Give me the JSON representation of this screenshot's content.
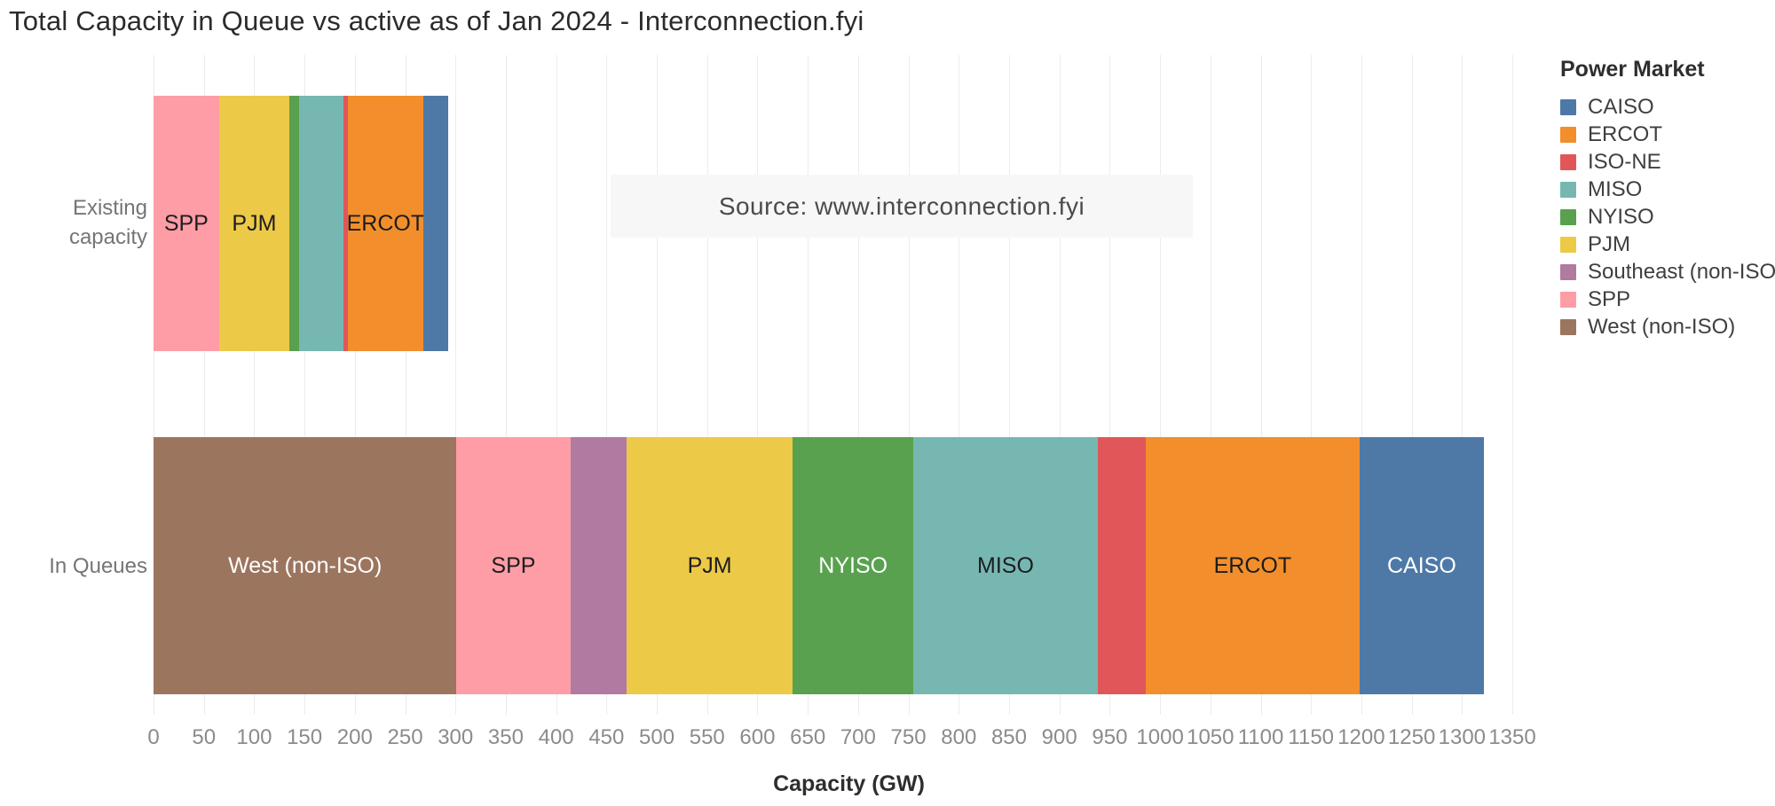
{
  "title": "Total Capacity in Queue vs active as of Jan 2024 - Interconnection.fyi",
  "source_note": "Source: www.interconnection.fyi",
  "legend": {
    "title": "Power Market",
    "items": [
      {
        "label": "CAISO",
        "color": "#4e79a7"
      },
      {
        "label": "ERCOT",
        "color": "#f28e2b"
      },
      {
        "label": "ISO-NE",
        "color": "#e15759"
      },
      {
        "label": "MISO",
        "color": "#76b7b2"
      },
      {
        "label": "NYISO",
        "color": "#59a14f"
      },
      {
        "label": "PJM",
        "color": "#edc948"
      },
      {
        "label": "Southeast (non-ISO)",
        "color": "#b07aa1"
      },
      {
        "label": "SPP",
        "color": "#ff9da7"
      },
      {
        "label": "West (non-ISO)",
        "color": "#9c755f"
      }
    ]
  },
  "axis": {
    "title": "Capacity (GW)",
    "ticks": [
      0,
      50,
      100,
      150,
      200,
      250,
      300,
      350,
      400,
      450,
      500,
      550,
      600,
      650,
      700,
      750,
      800,
      850,
      900,
      950,
      1000,
      1050,
      1100,
      1150,
      1200,
      1250,
      1300,
      1350
    ]
  },
  "row_labels": {
    "existing_line1": "Existing",
    "existing_line2": "capacity",
    "queues": "In Queues"
  },
  "chart_data": {
    "type": "bar",
    "orientation": "horizontal-stacked",
    "title": "Total Capacity in Queue vs active as of Jan 2024 - Interconnection.fyi",
    "xlabel": "Capacity (GW)",
    "ylabel": "",
    "xlim": [
      0,
      1350
    ],
    "tick_step": 50,
    "grid": "vertical",
    "legend_position": "right",
    "categories": [
      "Existing capacity",
      "In Queues"
    ],
    "series": [
      {
        "name": "CAISO",
        "color": "#4e79a7",
        "values": [
          25,
          124
        ]
      },
      {
        "name": "ERCOT",
        "color": "#f28e2b",
        "values": [
          75,
          212
        ]
      },
      {
        "name": "ISO-NE",
        "color": "#e15759",
        "values": [
          4,
          48
        ]
      },
      {
        "name": "MISO",
        "color": "#76b7b2",
        "values": [
          44,
          183
        ]
      },
      {
        "name": "NYISO",
        "color": "#59a14f",
        "values": [
          10,
          120
        ]
      },
      {
        "name": "PJM",
        "color": "#edc948",
        "values": [
          70,
          165
        ]
      },
      {
        "name": "Southeast (non-ISO)",
        "color": "#b07aa1",
        "values": [
          0,
          56
        ]
      },
      {
        "name": "SPP",
        "color": "#ff9da7",
        "values": [
          65,
          113
        ]
      },
      {
        "name": "West (non-ISO)",
        "color": "#9c755f",
        "values": [
          0,
          301
        ]
      }
    ],
    "bars": [
      {
        "category": "Existing capacity",
        "total": 293,
        "segments": [
          {
            "market": "SPP",
            "value": 65,
            "color": "#ff9da7",
            "label": "SPP",
            "label_color": "#1d1d1d"
          },
          {
            "market": "PJM",
            "value": 70,
            "color": "#edc948",
            "label": "PJM",
            "label_color": "#1d1d1d"
          },
          {
            "market": "NYISO",
            "value": 10,
            "color": "#59a14f",
            "label": "",
            "label_color": "#ffffff"
          },
          {
            "market": "MISO",
            "value": 44,
            "color": "#76b7b2",
            "label": "",
            "label_color": "#1d1d1d"
          },
          {
            "market": "ISO-NE",
            "value": 4,
            "color": "#e15759",
            "label": "",
            "label_color": "#ffffff"
          },
          {
            "market": "ERCOT",
            "value": 75,
            "color": "#f28e2b",
            "label": "ERCOT",
            "label_color": "#1d1d1d"
          },
          {
            "market": "CAISO",
            "value": 25,
            "color": "#4e79a7",
            "label": "",
            "label_color": "#ffffff"
          }
        ]
      },
      {
        "category": "In Queues",
        "total": 1322,
        "segments": [
          {
            "market": "West (non-ISO)",
            "value": 301,
            "color": "#9c755f",
            "label": "West (non-ISO)",
            "label_color": "#ffffff"
          },
          {
            "market": "SPP",
            "value": 113,
            "color": "#ff9da7",
            "label": "SPP",
            "label_color": "#1d1d1d"
          },
          {
            "market": "Southeast (non-ISO)",
            "value": 56,
            "color": "#b07aa1",
            "label": "",
            "label_color": "#ffffff"
          },
          {
            "market": "PJM",
            "value": 165,
            "color": "#edc948",
            "label": "PJM",
            "label_color": "#1d1d1d"
          },
          {
            "market": "NYISO",
            "value": 120,
            "color": "#59a14f",
            "label": "NYISO",
            "label_color": "#ffffff"
          },
          {
            "market": "MISO",
            "value": 183,
            "color": "#76b7b2",
            "label": "MISO",
            "label_color": "#1d1d1d"
          },
          {
            "market": "ISO-NE",
            "value": 48,
            "color": "#e15759",
            "label": "",
            "label_color": "#ffffff"
          },
          {
            "market": "ERCOT",
            "value": 212,
            "color": "#f28e2b",
            "label": "ERCOT",
            "label_color": "#1d1d1d"
          },
          {
            "market": "CAISO",
            "value": 124,
            "color": "#4e79a7",
            "label": "CAISO",
            "label_color": "#ffffff"
          }
        ]
      }
    ]
  }
}
